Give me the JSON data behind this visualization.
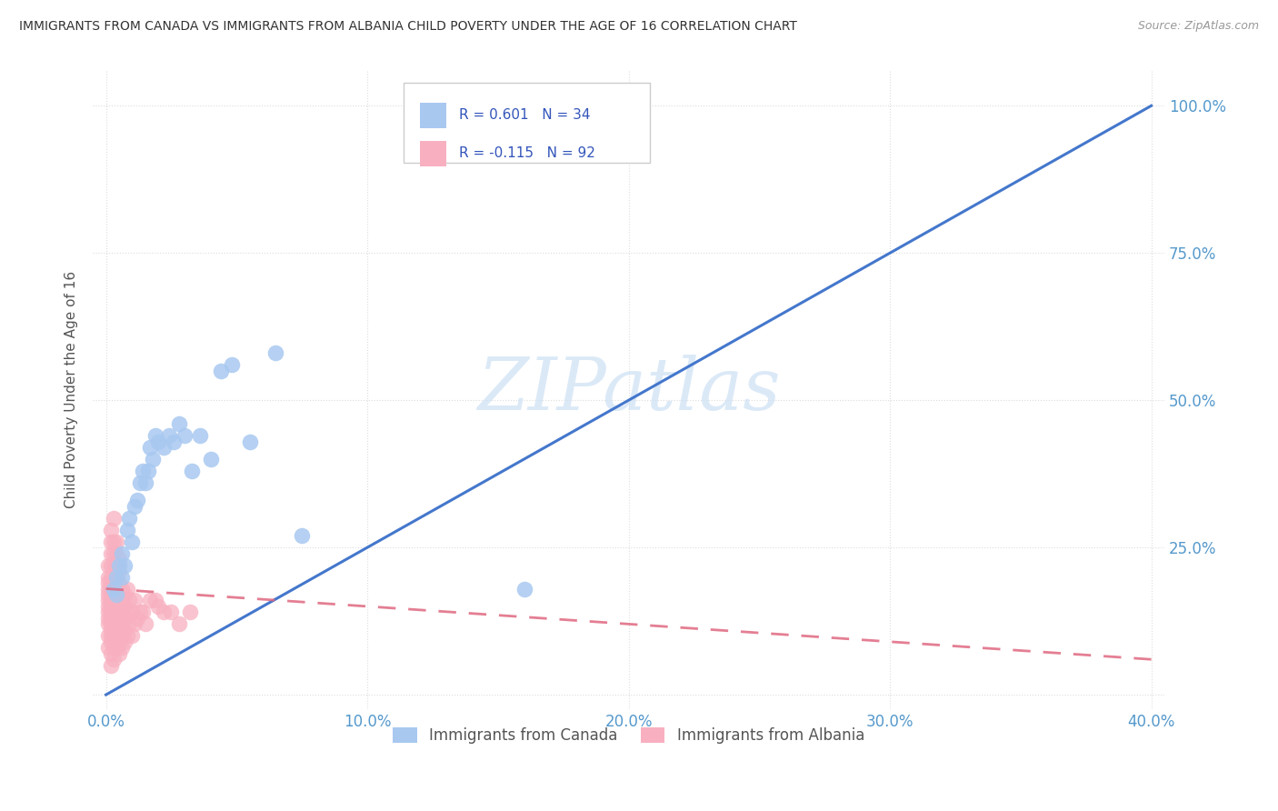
{
  "title": "IMMIGRANTS FROM CANADA VS IMMIGRANTS FROM ALBANIA CHILD POVERTY UNDER THE AGE OF 16 CORRELATION CHART",
  "source": "Source: ZipAtlas.com",
  "xlabel_ticks": [
    "0.0%",
    "",
    "",
    "",
    "",
    "10.0%",
    "",
    "",
    "",
    "",
    "20.0%",
    "",
    "",
    "",
    "",
    "30.0%",
    "",
    "",
    "",
    "",
    "40.0%"
  ],
  "xlabel_tick_vals": [
    0.0,
    0.02,
    0.04,
    0.06,
    0.08,
    0.1,
    0.12,
    0.14,
    0.16,
    0.18,
    0.2,
    0.22,
    0.24,
    0.26,
    0.28,
    0.3,
    0.32,
    0.34,
    0.36,
    0.38,
    0.4
  ],
  "xlabel_major_ticks": [
    0.0,
    0.1,
    0.2,
    0.3,
    0.4
  ],
  "xlabel_major_labels": [
    "0.0%",
    "10.0%",
    "20.0%",
    "30.0%",
    "40.0%"
  ],
  "ylabel_ticks": [
    0.0,
    0.25,
    0.5,
    0.75,
    1.0
  ],
  "ylabel_labels": [
    "",
    "25.0%",
    "50.0%",
    "75.0%",
    "100.0%"
  ],
  "ylabel_label": "Child Poverty Under the Age of 16",
  "canada_R": 0.601,
  "canada_N": 34,
  "albania_R": -0.115,
  "albania_N": 92,
  "canada_color": "#a8c8f0",
  "canada_edge_color": "#7aaad8",
  "canada_line_color": "#4477cc",
  "albania_color": "#f8b0c0",
  "albania_edge_color": "#e888a0",
  "albania_line_color": "#e06880",
  "canada_scatter_x": [
    0.003,
    0.004,
    0.004,
    0.005,
    0.006,
    0.006,
    0.007,
    0.008,
    0.009,
    0.01,
    0.011,
    0.012,
    0.013,
    0.014,
    0.015,
    0.016,
    0.017,
    0.018,
    0.019,
    0.02,
    0.022,
    0.024,
    0.026,
    0.028,
    0.03,
    0.033,
    0.036,
    0.04,
    0.044,
    0.048,
    0.055,
    0.065,
    0.075,
    0.16
  ],
  "canada_scatter_y": [
    0.18,
    0.17,
    0.2,
    0.22,
    0.2,
    0.24,
    0.22,
    0.28,
    0.3,
    0.26,
    0.32,
    0.33,
    0.36,
    0.38,
    0.36,
    0.38,
    0.42,
    0.4,
    0.44,
    0.43,
    0.42,
    0.44,
    0.43,
    0.46,
    0.44,
    0.38,
    0.44,
    0.4,
    0.55,
    0.56,
    0.43,
    0.58,
    0.27,
    0.18
  ],
  "albania_scatter_x": [
    0.001,
    0.001,
    0.001,
    0.001,
    0.001,
    0.001,
    0.001,
    0.001,
    0.001,
    0.001,
    0.001,
    0.001,
    0.002,
    0.002,
    0.002,
    0.002,
    0.002,
    0.002,
    0.002,
    0.002,
    0.002,
    0.002,
    0.002,
    0.002,
    0.002,
    0.002,
    0.002,
    0.002,
    0.002,
    0.003,
    0.003,
    0.003,
    0.003,
    0.003,
    0.003,
    0.003,
    0.003,
    0.003,
    0.003,
    0.003,
    0.003,
    0.003,
    0.004,
    0.004,
    0.004,
    0.004,
    0.004,
    0.004,
    0.004,
    0.004,
    0.004,
    0.004,
    0.005,
    0.005,
    0.005,
    0.005,
    0.005,
    0.005,
    0.005,
    0.005,
    0.005,
    0.006,
    0.006,
    0.006,
    0.006,
    0.006,
    0.006,
    0.007,
    0.007,
    0.007,
    0.007,
    0.007,
    0.008,
    0.008,
    0.008,
    0.009,
    0.009,
    0.01,
    0.01,
    0.011,
    0.011,
    0.012,
    0.013,
    0.014,
    0.015,
    0.017,
    0.019,
    0.02,
    0.022,
    0.025,
    0.028,
    0.032
  ],
  "albania_scatter_y": [
    0.08,
    0.1,
    0.12,
    0.13,
    0.14,
    0.15,
    0.16,
    0.17,
    0.18,
    0.19,
    0.2,
    0.22,
    0.05,
    0.07,
    0.09,
    0.1,
    0.11,
    0.12,
    0.13,
    0.14,
    0.15,
    0.16,
    0.17,
    0.18,
    0.2,
    0.22,
    0.24,
    0.26,
    0.28,
    0.06,
    0.08,
    0.1,
    0.12,
    0.13,
    0.14,
    0.16,
    0.18,
    0.2,
    0.22,
    0.24,
    0.26,
    0.3,
    0.08,
    0.1,
    0.12,
    0.14,
    0.16,
    0.18,
    0.2,
    0.22,
    0.24,
    0.26,
    0.07,
    0.09,
    0.11,
    0.13,
    0.15,
    0.17,
    0.19,
    0.21,
    0.23,
    0.08,
    0.1,
    0.12,
    0.14,
    0.16,
    0.18,
    0.09,
    0.11,
    0.13,
    0.15,
    0.17,
    0.1,
    0.14,
    0.18,
    0.12,
    0.16,
    0.1,
    0.14,
    0.12,
    0.16,
    0.13,
    0.14,
    0.14,
    0.12,
    0.16,
    0.16,
    0.15,
    0.14,
    0.14,
    0.12,
    0.14
  ],
  "canada_trend_x": [
    0.0,
    0.4
  ],
  "canada_trend_y": [
    0.0,
    1.0
  ],
  "albania_trend_x": [
    0.0,
    0.4
  ],
  "albania_trend_y": [
    0.18,
    0.06
  ],
  "watermark_text": "ZIPatlas",
  "watermark_color": "#cce0f5",
  "background_color": "#ffffff",
  "grid_color": "#dddddd",
  "tick_color": "#5599cc",
  "axis_label_color": "#555555"
}
